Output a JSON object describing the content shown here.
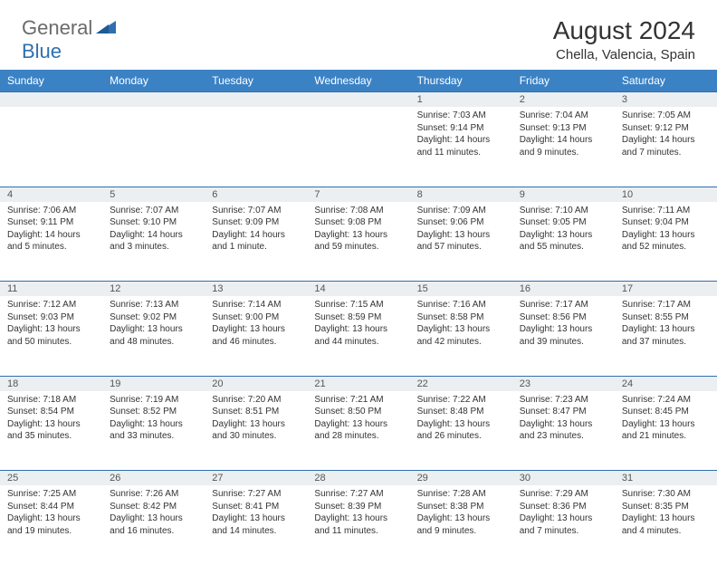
{
  "logo": {
    "text1": "General",
    "text2": "Blue"
  },
  "title": "August 2024",
  "location": "Chella, Valencia, Spain",
  "colors": {
    "header_bg": "#3b82c4",
    "header_text": "#ffffff",
    "daynum_bg": "#eceff1",
    "border": "#2f6fb0",
    "logo_gray": "#6b6b6b",
    "logo_blue": "#2f6fb0"
  },
  "weekdays": [
    "Sunday",
    "Monday",
    "Tuesday",
    "Wednesday",
    "Thursday",
    "Friday",
    "Saturday"
  ],
  "weeks": [
    [
      null,
      null,
      null,
      null,
      {
        "n": "1",
        "sr": "7:03 AM",
        "ss": "9:14 PM",
        "dl": "14 hours and 11 minutes."
      },
      {
        "n": "2",
        "sr": "7:04 AM",
        "ss": "9:13 PM",
        "dl": "14 hours and 9 minutes."
      },
      {
        "n": "3",
        "sr": "7:05 AM",
        "ss": "9:12 PM",
        "dl": "14 hours and 7 minutes."
      }
    ],
    [
      {
        "n": "4",
        "sr": "7:06 AM",
        "ss": "9:11 PM",
        "dl": "14 hours and 5 minutes."
      },
      {
        "n": "5",
        "sr": "7:07 AM",
        "ss": "9:10 PM",
        "dl": "14 hours and 3 minutes."
      },
      {
        "n": "6",
        "sr": "7:07 AM",
        "ss": "9:09 PM",
        "dl": "14 hours and 1 minute."
      },
      {
        "n": "7",
        "sr": "7:08 AM",
        "ss": "9:08 PM",
        "dl": "13 hours and 59 minutes."
      },
      {
        "n": "8",
        "sr": "7:09 AM",
        "ss": "9:06 PM",
        "dl": "13 hours and 57 minutes."
      },
      {
        "n": "9",
        "sr": "7:10 AM",
        "ss": "9:05 PM",
        "dl": "13 hours and 55 minutes."
      },
      {
        "n": "10",
        "sr": "7:11 AM",
        "ss": "9:04 PM",
        "dl": "13 hours and 52 minutes."
      }
    ],
    [
      {
        "n": "11",
        "sr": "7:12 AM",
        "ss": "9:03 PM",
        "dl": "13 hours and 50 minutes."
      },
      {
        "n": "12",
        "sr": "7:13 AM",
        "ss": "9:02 PM",
        "dl": "13 hours and 48 minutes."
      },
      {
        "n": "13",
        "sr": "7:14 AM",
        "ss": "9:00 PM",
        "dl": "13 hours and 46 minutes."
      },
      {
        "n": "14",
        "sr": "7:15 AM",
        "ss": "8:59 PM",
        "dl": "13 hours and 44 minutes."
      },
      {
        "n": "15",
        "sr": "7:16 AM",
        "ss": "8:58 PM",
        "dl": "13 hours and 42 minutes."
      },
      {
        "n": "16",
        "sr": "7:17 AM",
        "ss": "8:56 PM",
        "dl": "13 hours and 39 minutes."
      },
      {
        "n": "17",
        "sr": "7:17 AM",
        "ss": "8:55 PM",
        "dl": "13 hours and 37 minutes."
      }
    ],
    [
      {
        "n": "18",
        "sr": "7:18 AM",
        "ss": "8:54 PM",
        "dl": "13 hours and 35 minutes."
      },
      {
        "n": "19",
        "sr": "7:19 AM",
        "ss": "8:52 PM",
        "dl": "13 hours and 33 minutes."
      },
      {
        "n": "20",
        "sr": "7:20 AM",
        "ss": "8:51 PM",
        "dl": "13 hours and 30 minutes."
      },
      {
        "n": "21",
        "sr": "7:21 AM",
        "ss": "8:50 PM",
        "dl": "13 hours and 28 minutes."
      },
      {
        "n": "22",
        "sr": "7:22 AM",
        "ss": "8:48 PM",
        "dl": "13 hours and 26 minutes."
      },
      {
        "n": "23",
        "sr": "7:23 AM",
        "ss": "8:47 PM",
        "dl": "13 hours and 23 minutes."
      },
      {
        "n": "24",
        "sr": "7:24 AM",
        "ss": "8:45 PM",
        "dl": "13 hours and 21 minutes."
      }
    ],
    [
      {
        "n": "25",
        "sr": "7:25 AM",
        "ss": "8:44 PM",
        "dl": "13 hours and 19 minutes."
      },
      {
        "n": "26",
        "sr": "7:26 AM",
        "ss": "8:42 PM",
        "dl": "13 hours and 16 minutes."
      },
      {
        "n": "27",
        "sr": "7:27 AM",
        "ss": "8:41 PM",
        "dl": "13 hours and 14 minutes."
      },
      {
        "n": "28",
        "sr": "7:27 AM",
        "ss": "8:39 PM",
        "dl": "13 hours and 11 minutes."
      },
      {
        "n": "29",
        "sr": "7:28 AM",
        "ss": "8:38 PM",
        "dl": "13 hours and 9 minutes."
      },
      {
        "n": "30",
        "sr": "7:29 AM",
        "ss": "8:36 PM",
        "dl": "13 hours and 7 minutes."
      },
      {
        "n": "31",
        "sr": "7:30 AM",
        "ss": "8:35 PM",
        "dl": "13 hours and 4 minutes."
      }
    ]
  ],
  "labels": {
    "sunrise": "Sunrise:",
    "sunset": "Sunset:",
    "daylight": "Daylight:"
  }
}
